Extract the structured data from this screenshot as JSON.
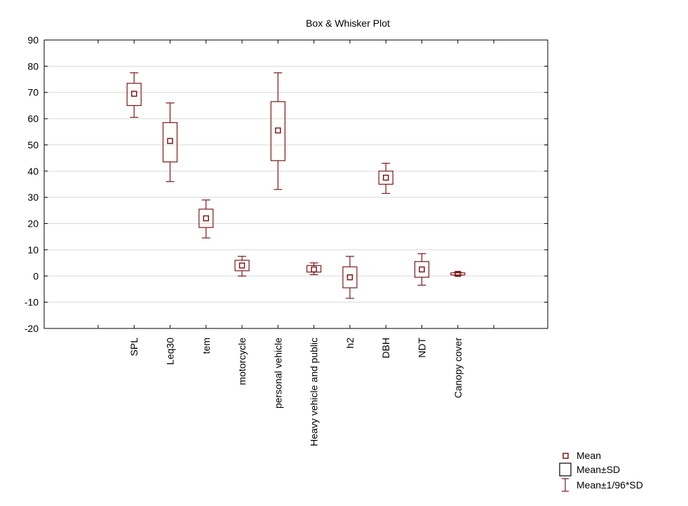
{
  "chart_data": {
    "type": "box",
    "title": "Box & Whisker Plot",
    "xlabel": "",
    "ylabel": "",
    "ylim": [
      -20,
      90
    ],
    "yticks": [
      90,
      80,
      70,
      60,
      50,
      40,
      30,
      20,
      10,
      0,
      -10,
      -20
    ],
    "ytick_labels": [
      "90",
      "80",
      "70",
      "60",
      "50",
      "40",
      "30",
      "20",
      "10",
      "0",
      "-10",
      "-20"
    ],
    "grid": true,
    "legend_position": "bottom-right",
    "color": "#7b1a1a",
    "categories": [
      "SPL",
      "Leq30",
      "tem",
      "motorcycle",
      "personal vehicle",
      "Heavy vehicle and public",
      "h2",
      "DBH",
      "NDT",
      "Canopy cover"
    ],
    "mean": [
      69.5,
      51.5,
      22,
      4,
      55.5,
      2.5,
      -0.5,
      37.5,
      2.5,
      0.8
    ],
    "box_low": [
      65,
      43.5,
      18.5,
      2,
      44,
      1.5,
      -4.5,
      35,
      -0.5,
      0.4
    ],
    "box_high": [
      73.5,
      58.5,
      25.5,
      6,
      66.5,
      4,
      3.5,
      40,
      5.5,
      1.2
    ],
    "whisker_low": [
      60.5,
      36,
      14.5,
      0,
      33,
      0.5,
      -8.5,
      31.5,
      -3.5,
      0.2
    ],
    "whisker_high": [
      77.5,
      66,
      29,
      7.5,
      77.5,
      5,
      7.5,
      43,
      8.5,
      1.4
    ],
    "legend": [
      "Mean",
      "Mean±SD",
      "Mean±1/96*SD"
    ]
  }
}
